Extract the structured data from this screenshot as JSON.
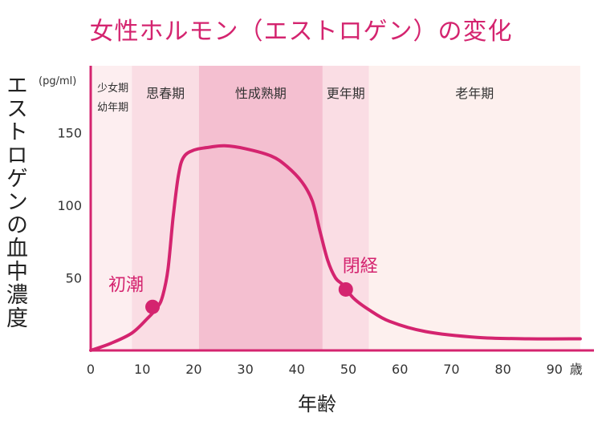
{
  "chart_data": {
    "type": "line",
    "title": "女性ホルモン（エストロゲン）の変化",
    "ylabel": "エストロゲンの血中濃度",
    "yunit": "(pg/ml)",
    "xlabel": "年齢",
    "xunit": "歳",
    "xlim": [
      0,
      95
    ],
    "ylim": [
      0,
      165
    ],
    "xticks": [
      0,
      10,
      20,
      30,
      40,
      50,
      60,
      70,
      80,
      90
    ],
    "yticks": [
      50,
      100,
      150
    ],
    "phases": [
      {
        "label": "少女期",
        "label2": "幼年期",
        "start": 0,
        "end": 8,
        "color": "#fdeef0"
      },
      {
        "label": "思春期",
        "start": 8,
        "end": 21,
        "color": "#fadde4"
      },
      {
        "label": "性成熟期",
        "start": 21,
        "end": 45,
        "color": "#f4bfd0"
      },
      {
        "label": "更年期",
        "start": 45,
        "end": 54,
        "color": "#fadde4"
      },
      {
        "label": "老年期",
        "start": 54,
        "end": 95,
        "color": "#fdf0ee"
      }
    ],
    "series": [
      {
        "color": "#d4246f",
        "points": [
          [
            0,
            0
          ],
          [
            4,
            5
          ],
          [
            8,
            12
          ],
          [
            11,
            22
          ],
          [
            13,
            30
          ],
          [
            14,
            38
          ],
          [
            15,
            56
          ],
          [
            16,
            92
          ],
          [
            17,
            120
          ],
          [
            18,
            133
          ],
          [
            20,
            138
          ],
          [
            23,
            140
          ],
          [
            26,
            141
          ],
          [
            30,
            139
          ],
          [
            35,
            134
          ],
          [
            38,
            127
          ],
          [
            41,
            116
          ],
          [
            43,
            103
          ],
          [
            44.5,
            82
          ],
          [
            46,
            62
          ],
          [
            47.5,
            50
          ],
          [
            49,
            45
          ],
          [
            51,
            36
          ],
          [
            54,
            28
          ],
          [
            58,
            20
          ],
          [
            65,
            13
          ],
          [
            75,
            9
          ],
          [
            85,
            8
          ],
          [
            95,
            8
          ]
        ]
      }
    ],
    "annotations": [
      {
        "label": "初潮",
        "x": 12,
        "y": 30
      },
      {
        "label": "閉経",
        "x": 49.5,
        "y": 42
      }
    ]
  }
}
